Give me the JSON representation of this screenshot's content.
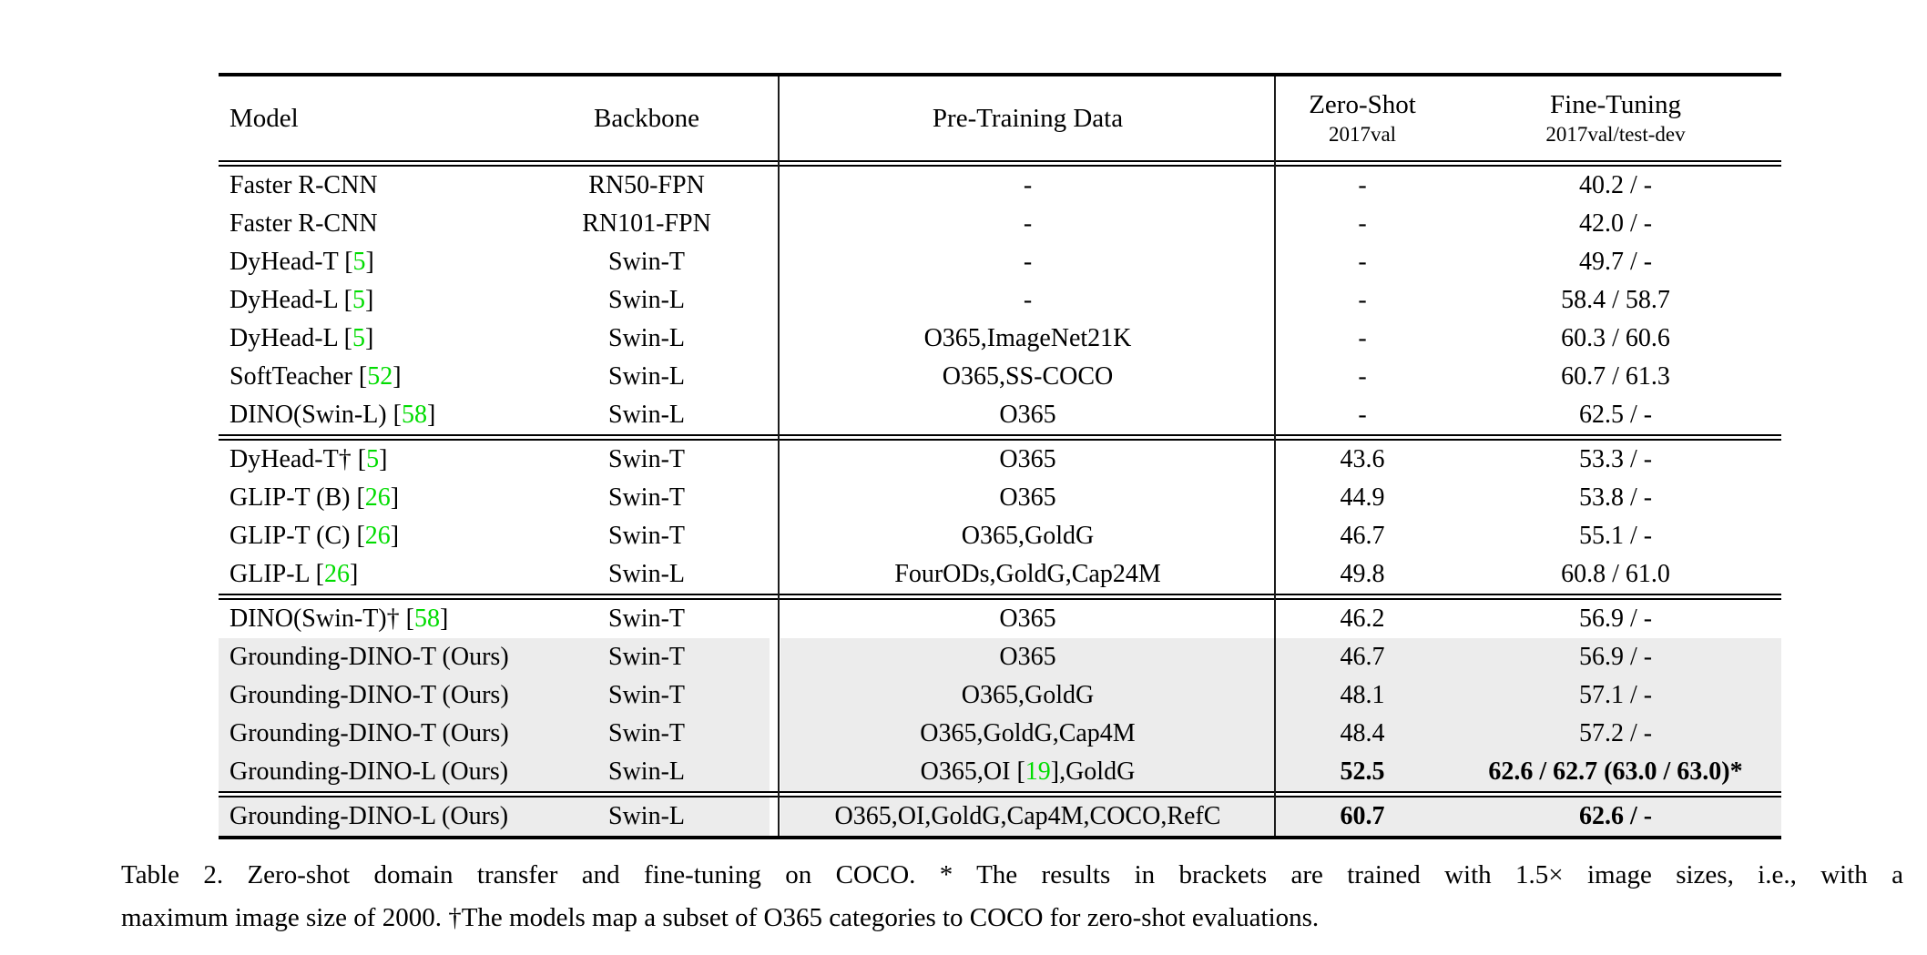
{
  "colors": {
    "citation_green": "#00dc00",
    "row_highlight": "#ececec",
    "rule_black": "#000000"
  },
  "table": {
    "header": {
      "model": "Model",
      "backbone": "Backbone",
      "pretrain": "Pre-Training Data",
      "zeroshot_title": "Zero-Shot",
      "zeroshot_sub": "2017val",
      "finetune_title": "Fine-Tuning",
      "finetune_sub": "2017val/test-dev"
    },
    "sections": [
      {
        "rows": [
          {
            "model": [
              {
                "t": "Faster R-CNN"
              }
            ],
            "backbone": "RN50-FPN",
            "pretrain": [
              {
                "t": "-"
              }
            ],
            "zeroshot": {
              "t": "-"
            },
            "finetune": {
              "t": "40.2 / -"
            },
            "highlight": false
          },
          {
            "model": [
              {
                "t": "Faster R-CNN"
              }
            ],
            "backbone": "RN101-FPN",
            "pretrain": [
              {
                "t": "-"
              }
            ],
            "zeroshot": {
              "t": "-"
            },
            "finetune": {
              "t": "42.0 / -"
            },
            "highlight": false
          },
          {
            "model": [
              {
                "t": "DyHead-T ["
              },
              {
                "t": "5",
                "green": true
              },
              {
                "t": "]"
              }
            ],
            "backbone": "Swin-T",
            "pretrain": [
              {
                "t": "-"
              }
            ],
            "zeroshot": {
              "t": "-"
            },
            "finetune": {
              "t": "49.7 / -"
            },
            "highlight": false
          },
          {
            "model": [
              {
                "t": "DyHead-L ["
              },
              {
                "t": "5",
                "green": true
              },
              {
                "t": "]"
              }
            ],
            "backbone": "Swin-L",
            "pretrain": [
              {
                "t": "-"
              }
            ],
            "zeroshot": {
              "t": "-"
            },
            "finetune": {
              "t": "58.4 / 58.7"
            },
            "highlight": false
          },
          {
            "model": [
              {
                "t": "DyHead-L ["
              },
              {
                "t": "5",
                "green": true
              },
              {
                "t": "]"
              }
            ],
            "backbone": "Swin-L",
            "pretrain": [
              {
                "t": "O365,ImageNet21K"
              }
            ],
            "zeroshot": {
              "t": "-"
            },
            "finetune": {
              "t": "60.3 / 60.6"
            },
            "highlight": false
          },
          {
            "model": [
              {
                "t": "SoftTeacher ["
              },
              {
                "t": "52",
                "green": true
              },
              {
                "t": "]"
              }
            ],
            "backbone": "Swin-L",
            "pretrain": [
              {
                "t": "O365,SS-COCO"
              }
            ],
            "zeroshot": {
              "t": "-"
            },
            "finetune": {
              "t": "60.7 / 61.3"
            },
            "highlight": false
          },
          {
            "model": [
              {
                "t": "DINO(Swin-L) ["
              },
              {
                "t": "58",
                "green": true
              },
              {
                "t": "]"
              }
            ],
            "backbone": "Swin-L",
            "pretrain": [
              {
                "t": "O365"
              }
            ],
            "zeroshot": {
              "t": "-"
            },
            "finetune": {
              "t": "62.5 / -"
            },
            "highlight": false
          }
        ]
      },
      {
        "rows": [
          {
            "model": [
              {
                "t": "DyHead-T† ["
              },
              {
                "t": "5",
                "green": true
              },
              {
                "t": "]"
              }
            ],
            "backbone": "Swin-T",
            "pretrain": [
              {
                "t": "O365"
              }
            ],
            "zeroshot": {
              "t": "43.6"
            },
            "finetune": {
              "t": "53.3 / -"
            },
            "highlight": false
          },
          {
            "model": [
              {
                "t": "GLIP-T (B) ["
              },
              {
                "t": "26",
                "green": true
              },
              {
                "t": "]"
              }
            ],
            "backbone": "Swin-T",
            "pretrain": [
              {
                "t": "O365"
              }
            ],
            "zeroshot": {
              "t": "44.9"
            },
            "finetune": {
              "t": "53.8 / -"
            },
            "highlight": false
          },
          {
            "model": [
              {
                "t": "GLIP-T (C) ["
              },
              {
                "t": "26",
                "green": true
              },
              {
                "t": "]"
              }
            ],
            "backbone": "Swin-T",
            "pretrain": [
              {
                "t": "O365,GoldG"
              }
            ],
            "zeroshot": {
              "t": "46.7"
            },
            "finetune": {
              "t": "55.1 / -"
            },
            "highlight": false
          },
          {
            "model": [
              {
                "t": "GLIP-L ["
              },
              {
                "t": "26",
                "green": true
              },
              {
                "t": "]"
              }
            ],
            "backbone": "Swin-L",
            "pretrain": [
              {
                "t": "FourODs,GoldG,Cap24M"
              }
            ],
            "zeroshot": {
              "t": "49.8"
            },
            "finetune": {
              "t": "60.8 / 61.0"
            },
            "highlight": false
          }
        ]
      },
      {
        "rows": [
          {
            "model": [
              {
                "t": "DINO(Swin-T)† ["
              },
              {
                "t": "58",
                "green": true
              },
              {
                "t": "]"
              }
            ],
            "backbone": "Swin-T",
            "pretrain": [
              {
                "t": "O365"
              }
            ],
            "zeroshot": {
              "t": "46.2"
            },
            "finetune": {
              "t": "56.9 / -"
            },
            "highlight": false
          },
          {
            "model": [
              {
                "t": "Grounding-DINO-T (Ours)"
              }
            ],
            "backbone": "Swin-T",
            "pretrain": [
              {
                "t": "O365"
              }
            ],
            "zeroshot": {
              "t": "46.7"
            },
            "finetune": {
              "t": "56.9 / -"
            },
            "highlight": true
          },
          {
            "model": [
              {
                "t": "Grounding-DINO-T (Ours)"
              }
            ],
            "backbone": "Swin-T",
            "pretrain": [
              {
                "t": "O365,GoldG"
              }
            ],
            "zeroshot": {
              "t": "48.1"
            },
            "finetune": {
              "t": "57.1 / -"
            },
            "highlight": true
          },
          {
            "model": [
              {
                "t": "Grounding-DINO-T (Ours)"
              }
            ],
            "backbone": "Swin-T",
            "pretrain": [
              {
                "t": "O365,GoldG,Cap4M"
              }
            ],
            "zeroshot": {
              "t": "48.4"
            },
            "finetune": {
              "t": "57.2 / -"
            },
            "highlight": true
          },
          {
            "model": [
              {
                "t": "Grounding-DINO-L (Ours)"
              }
            ],
            "backbone": "Swin-L",
            "pretrain": [
              {
                "t": "O365,OI ["
              },
              {
                "t": "19",
                "green": true
              },
              {
                "t": "],GoldG"
              }
            ],
            "zeroshot": {
              "t": "52.5",
              "bold": true
            },
            "finetune": {
              "t": "62.6 / 62.7 (63.0 / 63.0)*",
              "bold": true
            },
            "highlight": true
          }
        ]
      },
      {
        "rows": [
          {
            "model": [
              {
                "t": "Grounding-DINO-L (Ours)"
              }
            ],
            "backbone": "Swin-L",
            "pretrain": [
              {
                "t": "O365,OI,GoldG,Cap4M,COCO,RefC"
              }
            ],
            "zeroshot": {
              "t": "60.7",
              "bold": true
            },
            "finetune": {
              "t": "62.6 / -",
              "bold": true
            },
            "highlight": true
          }
        ]
      }
    ]
  },
  "caption": {
    "line1": "Table 2.  Zero-shot domain transfer and fine-tuning on COCO. * The results in brackets are trained with 1.5× image sizes, i.e., with a",
    "line2": "maximum image size of 2000. †The models map a subset of O365 categories to COCO for zero-shot evaluations."
  }
}
